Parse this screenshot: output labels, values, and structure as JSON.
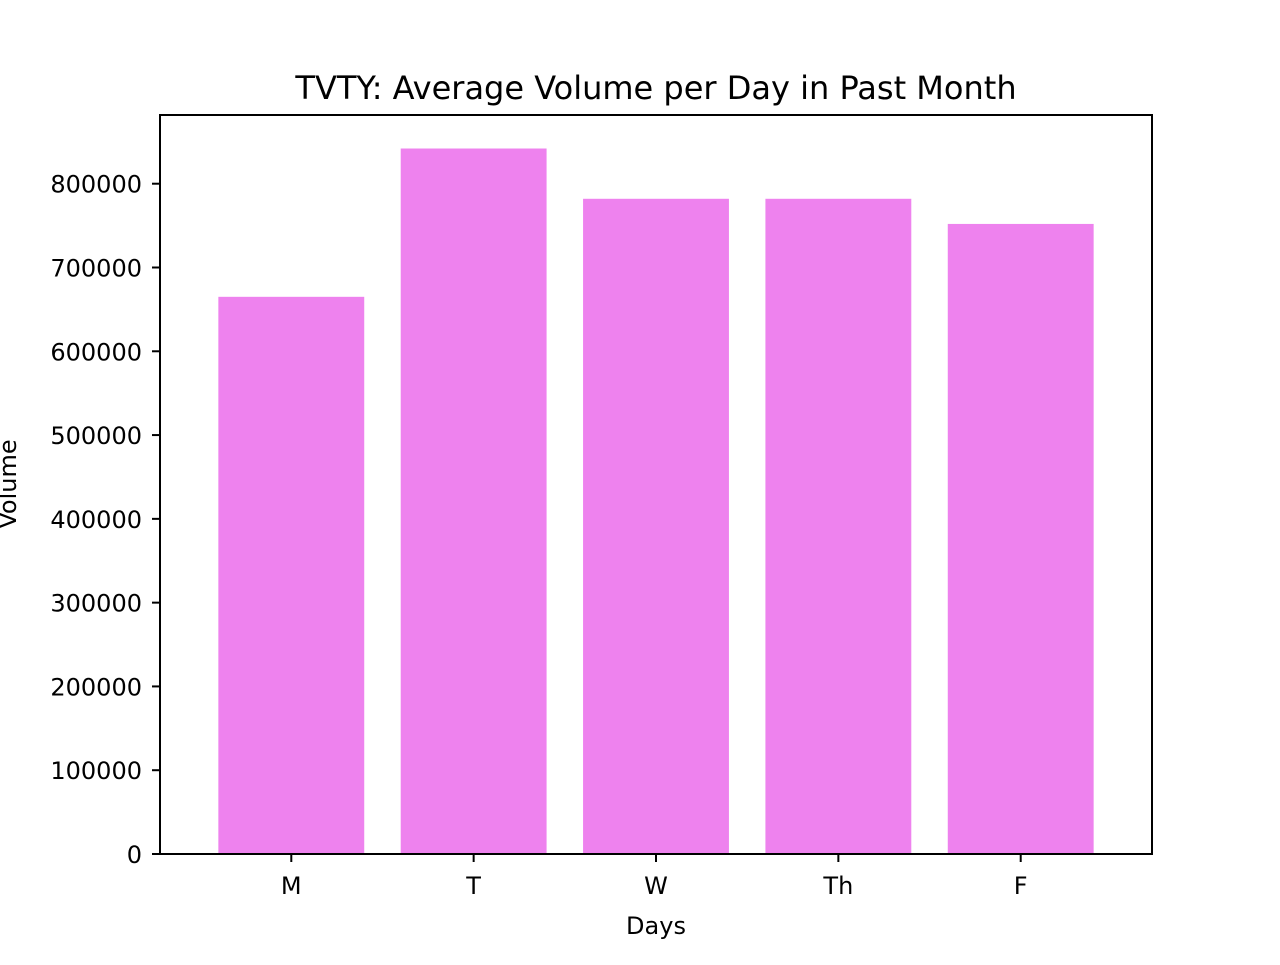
{
  "chart_data": {
    "type": "bar",
    "title": "TVTY: Average Volume per Day in Past Month",
    "xlabel": "Days",
    "ylabel": "Volume",
    "categories": [
      "M",
      "T",
      "W",
      "Th",
      "F"
    ],
    "values": [
      665000,
      842000,
      782000,
      782000,
      752000
    ],
    "ylim": [
      0,
      882000
    ],
    "yticks": [
      0,
      100000,
      200000,
      300000,
      400000,
      500000,
      600000,
      700000,
      800000
    ],
    "ytick_labels": [
      "0",
      "100000",
      "200000",
      "300000",
      "400000",
      "500000",
      "600000",
      "700000",
      "800000"
    ],
    "grid": false,
    "legend": "none",
    "bar_color": "#ee82ee"
  }
}
